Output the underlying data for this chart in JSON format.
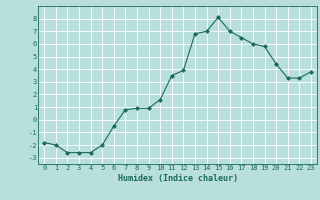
{
  "x_actual": [
    0,
    1,
    2,
    3,
    4,
    5,
    6,
    7,
    8,
    9,
    10,
    11,
    12,
    13,
    14,
    15,
    16,
    17,
    18,
    19,
    20,
    21,
    22,
    23
  ],
  "y_actual": [
    -1.8,
    -2.0,
    -2.6,
    -2.6,
    -2.6,
    -2.0,
    -0.5,
    0.8,
    0.9,
    0.9,
    1.6,
    3.5,
    3.9,
    6.8,
    7.0,
    8.1,
    7.0,
    6.5,
    6.0,
    5.8,
    4.4,
    3.3,
    3.3,
    3.8
  ],
  "xlim": [
    -0.5,
    23.5
  ],
  "ylim": [
    -3.5,
    9.0
  ],
  "yticks": [
    -3,
    -2,
    -1,
    0,
    1,
    2,
    3,
    4,
    5,
    6,
    7,
    8
  ],
  "xticks": [
    0,
    1,
    2,
    3,
    4,
    5,
    6,
    7,
    8,
    9,
    10,
    11,
    12,
    13,
    14,
    15,
    16,
    17,
    18,
    19,
    20,
    21,
    22,
    23
  ],
  "xlabel": "Humidex (Indice chaleur)",
  "line_color": "#1a6b5a",
  "marker_color": "#1a6b5a",
  "bg_color": "#b8dede",
  "grid_color": "#ffffff",
  "tick_fontsize": 5.0,
  "xlabel_fontsize": 6.0,
  "linewidth": 0.8,
  "markersize": 2.0
}
